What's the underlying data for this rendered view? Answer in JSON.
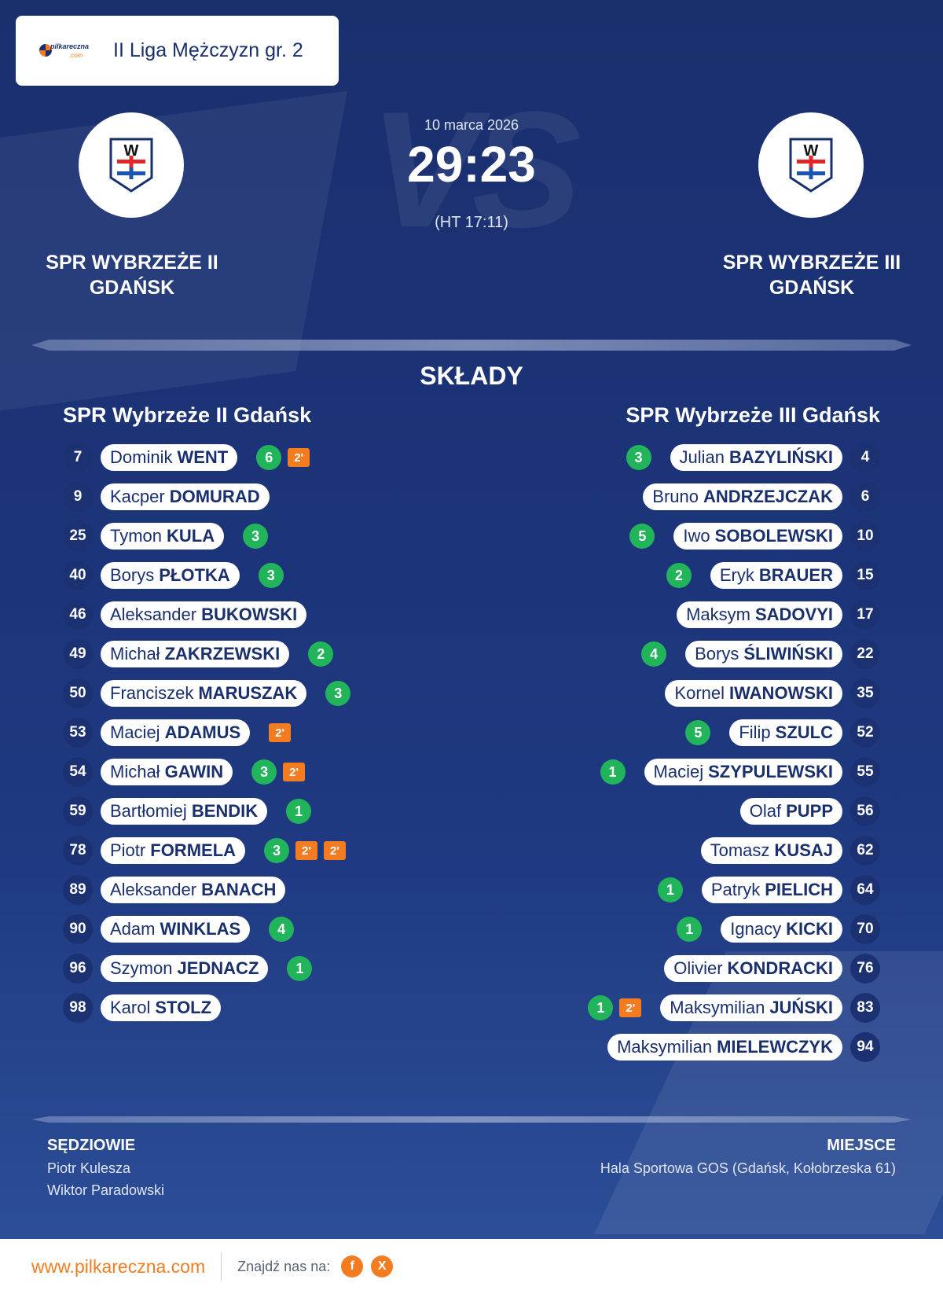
{
  "league": {
    "name": "II Liga Mężczyzn gr. 2",
    "logo_text": "pilkareczna",
    "logo_sub": ".com"
  },
  "match": {
    "date": "10 marca 2026",
    "score": "29:23",
    "halftime": "(HT 17:11)",
    "home_name_line1": "SPR WYBRZEŻE II",
    "home_name_line2": "GDAŃSK",
    "away_name_line1": "SPR WYBRZEŻE III",
    "away_name_line2": "GDAŃSK"
  },
  "lineups": {
    "title": "SKŁADY",
    "home_title": "SPR Wybrzeże II Gdańsk",
    "away_title": "SPR Wybrzeże III Gdańsk",
    "home": [
      {
        "num": "7",
        "first": "Dominik",
        "last": "WENT",
        "goals": "6",
        "susp": [
          "2'"
        ]
      },
      {
        "num": "9",
        "first": "Kacper",
        "last": "DOMURAD",
        "goals": "",
        "susp": []
      },
      {
        "num": "25",
        "first": "Tymon",
        "last": "KULA",
        "goals": "3",
        "susp": []
      },
      {
        "num": "40",
        "first": "Borys",
        "last": "PŁOTKA",
        "goals": "3",
        "susp": []
      },
      {
        "num": "46",
        "first": "Aleksander",
        "last": "BUKOWSKI",
        "goals": "",
        "susp": []
      },
      {
        "num": "49",
        "first": "Michał",
        "last": "ZAKRZEWSKI",
        "goals": "2",
        "susp": []
      },
      {
        "num": "50",
        "first": "Franciszek",
        "last": "MARUSZAK",
        "goals": "3",
        "susp": []
      },
      {
        "num": "53",
        "first": "Maciej",
        "last": "ADAMUS",
        "goals": "",
        "susp": [
          "2'"
        ]
      },
      {
        "num": "54",
        "first": "Michał",
        "last": "GAWIN",
        "goals": "3",
        "susp": [
          "2'"
        ]
      },
      {
        "num": "59",
        "first": "Bartłomiej",
        "last": "BENDIK",
        "goals": "1",
        "susp": []
      },
      {
        "num": "78",
        "first": "Piotr",
        "last": "FORMELA",
        "goals": "3",
        "susp": [
          "2'",
          "2'"
        ]
      },
      {
        "num": "89",
        "first": "Aleksander",
        "last": "BANACH",
        "goals": "",
        "susp": []
      },
      {
        "num": "90",
        "first": "Adam",
        "last": "WINKLAS",
        "goals": "4",
        "susp": []
      },
      {
        "num": "96",
        "first": "Szymon",
        "last": "JEDNACZ",
        "goals": "1",
        "susp": []
      },
      {
        "num": "98",
        "first": "Karol",
        "last": "STOLZ",
        "goals": "",
        "susp": []
      }
    ],
    "away": [
      {
        "num": "4",
        "first": "Julian",
        "last": "BAZYLIŃSKI",
        "goals": "3",
        "susp": []
      },
      {
        "num": "6",
        "first": "Bruno",
        "last": "ANDRZEJCZAK",
        "goals": "",
        "susp": []
      },
      {
        "num": "10",
        "first": "Iwo",
        "last": "SOBOLEWSKI",
        "goals": "5",
        "susp": []
      },
      {
        "num": "15",
        "first": "Eryk",
        "last": "BRAUER",
        "goals": "2",
        "susp": []
      },
      {
        "num": "17",
        "first": "Maksym",
        "last": "SADOVYI",
        "goals": "",
        "susp": []
      },
      {
        "num": "22",
        "first": "Borys",
        "last": "ŚLIWIŃSKI",
        "goals": "4",
        "susp": []
      },
      {
        "num": "35",
        "first": "Kornel",
        "last": "IWANOWSKI",
        "goals": "",
        "susp": []
      },
      {
        "num": "52",
        "first": "Filip",
        "last": "SZULC",
        "goals": "5",
        "susp": []
      },
      {
        "num": "55",
        "first": "Maciej",
        "last": "SZYPULEWSKI",
        "goals": "1",
        "susp": []
      },
      {
        "num": "56",
        "first": "Olaf",
        "last": "PUPP",
        "goals": "",
        "susp": []
      },
      {
        "num": "62",
        "first": "Tomasz",
        "last": "KUSAJ",
        "goals": "",
        "susp": []
      },
      {
        "num": "64",
        "first": "Patryk",
        "last": "PIELICH",
        "goals": "1",
        "susp": []
      },
      {
        "num": "70",
        "first": "Ignacy",
        "last": "KICKI",
        "goals": "1",
        "susp": []
      },
      {
        "num": "76",
        "first": "Olivier",
        "last": "KONDRACKI",
        "goals": "",
        "susp": []
      },
      {
        "num": "83",
        "first": "Maksymilian",
        "last": "JUŃSKI",
        "goals": "1",
        "susp": [
          "2'"
        ]
      },
      {
        "num": "94",
        "first": "Maksymilian",
        "last": "MIELEWCZYK",
        "goals": "",
        "susp": []
      }
    ]
  },
  "officials": {
    "referees_label": "SĘDZIOWIE",
    "referees": [
      "Piotr Kulesza",
      "Wiktor Paradowski"
    ],
    "venue_label": "MIEJSCE",
    "venue": "Hala Sportowa GOS (Gdańsk, Kołobrzeska 61)"
  },
  "footer": {
    "site": "www.pilkareczna.com",
    "find_us": "Znajdź nas na:",
    "social": [
      {
        "icon": "facebook-icon",
        "glyph": "f"
      },
      {
        "icon": "x-icon",
        "glyph": "X"
      }
    ]
  },
  "colors": {
    "background": "#1a2f6e",
    "goal_badge": "#22b45a",
    "suspension_badge": "#f47c20",
    "accent": "#f47c20"
  }
}
